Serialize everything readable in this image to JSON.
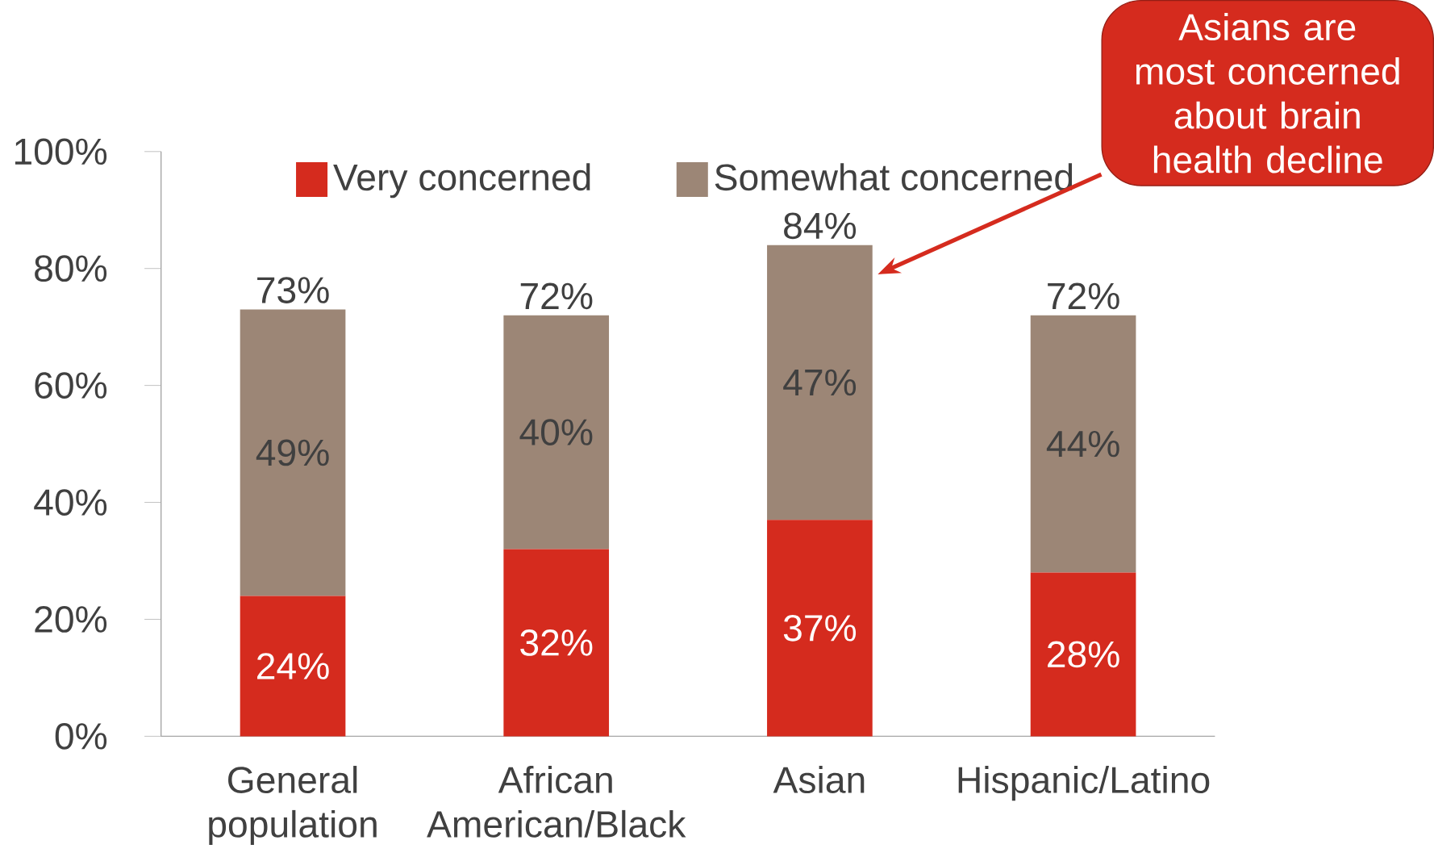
{
  "chart_data": {
    "type": "bar",
    "stacked": true,
    "categories": [
      "General population",
      "African American/Black",
      "Asian",
      "Hispanic/Latino"
    ],
    "series": [
      {
        "name": "Very concerned",
        "color": "#d52b1e",
        "values": [
          24,
          32,
          37,
          28
        ],
        "value_labels": [
          "24%",
          "32%",
          "37%",
          "28%"
        ]
      },
      {
        "name": "Somewhat concerned",
        "color": "#9c8676",
        "values": [
          49,
          40,
          47,
          44
        ],
        "value_labels": [
          "49%",
          "40%",
          "47%",
          "44%"
        ]
      }
    ],
    "totals": [
      "73%",
      "72%",
      "84%",
      "72%"
    ],
    "ylim": [
      0,
      100
    ],
    "yticks": [
      {
        "value": 0,
        "label": "0%"
      },
      {
        "value": 20,
        "label": "20%"
      },
      {
        "value": 40,
        "label": "40%"
      },
      {
        "value": 60,
        "label": "60%"
      },
      {
        "value": 80,
        "label": "80%"
      },
      {
        "value": 100,
        "label": "100%"
      }
    ],
    "legend": "top",
    "grid": false,
    "annotations": [
      "Asians are most concerned about brain health decline"
    ]
  }
}
